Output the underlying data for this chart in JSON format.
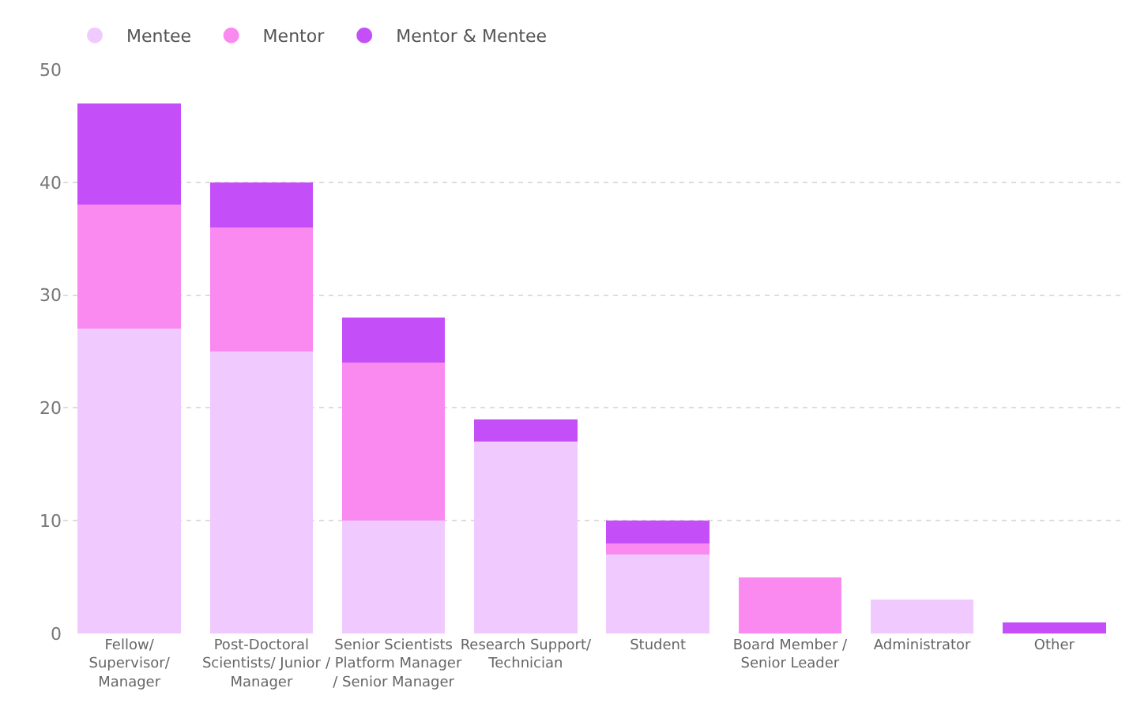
{
  "chart_data": {
    "type": "bar",
    "stacked": true,
    "categories": [
      "Fellow/ Supervisor/ Manager",
      "Post-Doctoral Scientists/ Junior Manager",
      "Senior Scientists / Platform Manager / Senior Manager",
      "Research Support/ Technician",
      "Student",
      "Board Member / Senior Leader",
      "Administrator",
      "Other"
    ],
    "series": [
      {
        "name": "Mentee",
        "color": "#f0caff",
        "values": [
          27,
          25,
          10,
          17,
          7,
          0,
          3,
          0
        ]
      },
      {
        "name": "Mentor",
        "color": "#fa89f0",
        "values": [
          11,
          11,
          14,
          0,
          1,
          5,
          0,
          0
        ]
      },
      {
        "name": "Mentor & Mentee",
        "color": "#c44ff8",
        "values": [
          9,
          4,
          4,
          2,
          2,
          0,
          0,
          1
        ]
      }
    ],
    "ylim": [
      0,
      50
    ],
    "yticks": [
      0,
      10,
      20,
      30,
      40,
      50
    ],
    "grid": "y",
    "legend": "top left",
    "marker": "circle"
  }
}
